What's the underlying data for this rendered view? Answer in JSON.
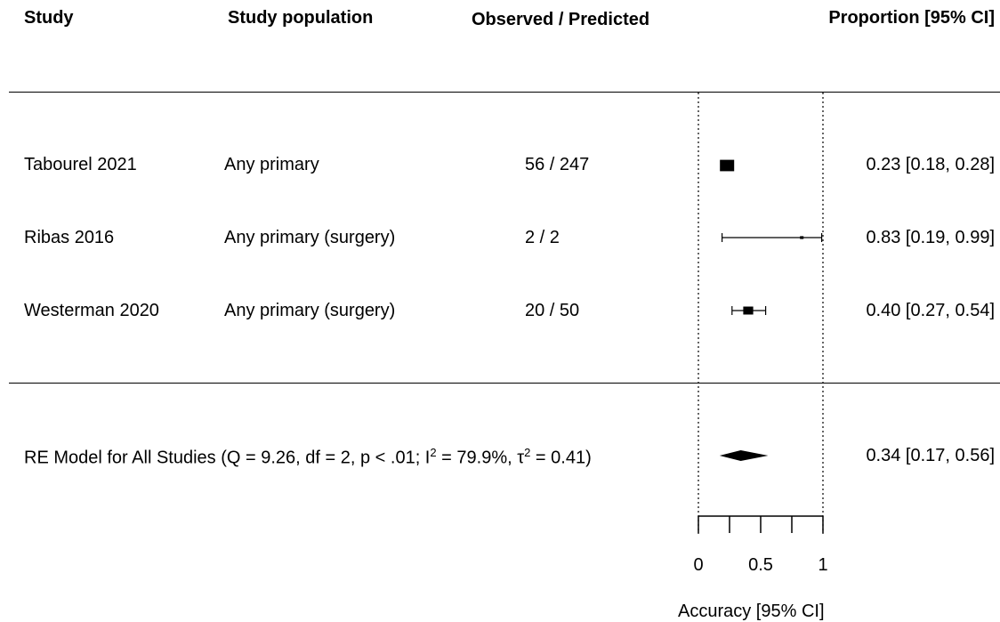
{
  "headers": {
    "study": "Study",
    "population": "Study population",
    "observed": "Observed / Predicted",
    "proportion": "Proportion [95% CI]"
  },
  "rows": [
    {
      "study": "Tabourel 2021",
      "population": "Any primary",
      "observed": "56 / 247",
      "ci_text": "0.23 [0.18, 0.28]"
    },
    {
      "study": "Ribas 2016",
      "population": "Any primary (surgery)",
      "observed": "2 / 2",
      "ci_text": "0.83 [0.19, 0.99]"
    },
    {
      "study": "Westerman 2020",
      "population": "Any primary (surgery)",
      "observed": "20 / 50",
      "ci_text": "0.40 [0.27, 0.54]"
    }
  ],
  "summary": {
    "label_main": "RE Model for All Studies (Q = 9.26, df = 2, p < .01; I",
    "label_sup1": "2",
    "label_mid": " = 79.9%, τ",
    "label_sup2": "2",
    "label_end": " = 0.41)",
    "ci_text": "0.34 [0.17, 0.56]"
  },
  "chart_data": {
    "type": "forest",
    "xlabel": "Accuracy [95% CI]",
    "xlim": [
      0,
      1
    ],
    "ticks": [
      0,
      0.25,
      0.5,
      0.75,
      1
    ],
    "tick_labels": [
      "0",
      "",
      "0.5",
      "",
      "1"
    ],
    "reference_lines": [
      0,
      1
    ],
    "studies": [
      {
        "name": "Tabourel 2021",
        "estimate": 0.23,
        "lower": 0.18,
        "upper": 0.28,
        "weight": 1.0
      },
      {
        "name": "Ribas 2016",
        "estimate": 0.83,
        "lower": 0.19,
        "upper": 0.99,
        "weight": 0.15
      },
      {
        "name": "Westerman 2020",
        "estimate": 0.4,
        "lower": 0.27,
        "upper": 0.54,
        "weight": 0.7
      }
    ],
    "pooled": {
      "name": "RE Model for All Studies",
      "estimate": 0.34,
      "lower": 0.17,
      "upper": 0.56
    }
  }
}
